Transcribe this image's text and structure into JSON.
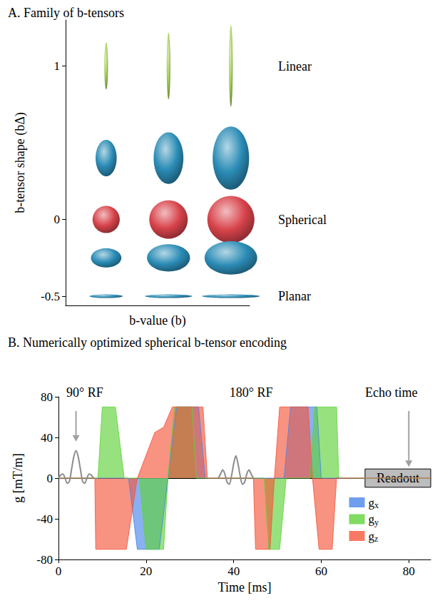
{
  "chart_data": [
    {
      "type": "ellipsoid",
      "title": "A. Family of b-tensors",
      "xlabel": "b-value (b)",
      "ylabel": "b-tensor shape (bΔ)",
      "x": [
        1,
        2,
        3
      ],
      "xlim": [
        0.35,
        3.3
      ],
      "ylim": [
        -0.56,
        1.3
      ],
      "yticks": [
        -0.5,
        0,
        1
      ],
      "tick_labels": "y",
      "series": [
        {
          "b_delta": 1,
          "color": "#a3cf4f"
        },
        {
          "b_delta": 0.4,
          "color": "#2b8cb6"
        },
        {
          "b_delta": 0,
          "color": "#d8434b"
        },
        {
          "b_delta": -0.25,
          "color": "#2b8cb6"
        },
        {
          "b_delta": -0.5,
          "color": "#2b8cb6"
        }
      ],
      "annotations": [
        {
          "text": "Linear",
          "y": 1
        },
        {
          "text": "Spherical",
          "y": 0
        },
        {
          "text": "Planar",
          "y": -0.5
        }
      ]
    },
    {
      "type": "area",
      "title": "B. Numerically optimized spherical b-tensor encoding",
      "xlabel": "Time [ms]",
      "ylabel": "g [mT/m]",
      "xlim": [
        0,
        85
      ],
      "xticks": [
        0,
        20,
        40,
        60,
        80
      ],
      "ylim": [
        -80,
        80
      ],
      "yticks": [
        -80,
        -40,
        0,
        40,
        80
      ],
      "legend": "lower right",
      "series": [
        {
          "name": "gx",
          "color": "#4a86e8",
          "x": [
            0,
            16,
            18,
            23,
            25,
            27,
            32,
            33.5,
            51.5,
            53,
            59,
            60,
            85
          ],
          "values": [
            0,
            0,
            -70,
            -70,
            0,
            70,
            70,
            0,
            0,
            70,
            70,
            0,
            0
          ]
        },
        {
          "name": "gy",
          "color": "#5fd33a",
          "x": [
            0,
            9,
            10,
            13,
            15,
            18.5,
            20,
            24,
            25,
            26.5,
            30.5,
            31.5,
            47,
            48,
            50.5,
            52,
            57.5,
            58.5,
            63.5,
            64,
            85
          ],
          "values": [
            0,
            0,
            70,
            70,
            0,
            0,
            -70,
            -70,
            0,
            70,
            70,
            0,
            0,
            -70,
            -70,
            0,
            0,
            70,
            70,
            0,
            0
          ]
        },
        {
          "name": "gz",
          "color": "#f4573e",
          "x": [
            0,
            8.3,
            8.5,
            15.5,
            18,
            22,
            24,
            26,
            33,
            34,
            44.5,
            45,
            48.3,
            49.3,
            50.5,
            57,
            58,
            59.5,
            62.5,
            63.5,
            85
          ],
          "values": [
            0,
            0,
            -70,
            -70,
            0,
            45,
            50,
            70,
            70,
            0,
            0,
            -70,
            -70,
            0,
            70,
            70,
            0,
            -70,
            -70,
            0,
            0
          ]
        }
      ],
      "rf": [
        {
          "color": "#8c8c8c",
          "x": [
            0,
            0.5,
            1,
            1.5,
            2,
            2.5,
            3,
            3.5,
            4,
            4.5,
            5,
            5.5,
            6,
            6.5,
            7,
            7.5,
            8
          ],
          "values": [
            0,
            3,
            4,
            0,
            -5,
            -3,
            9,
            21,
            27,
            21,
            9,
            -3,
            -5,
            0,
            4,
            3,
            0
          ]
        },
        {
          "color": "#8c8c8c",
          "x": [
            36.5,
            37,
            37.5,
            38,
            38.5,
            39,
            39.5,
            40,
            40.5,
            41,
            41.5,
            42,
            42.5,
            43,
            43.5,
            44,
            44.5
          ],
          "values": [
            0,
            4,
            8,
            4,
            -4,
            -6,
            2,
            14,
            22,
            14,
            2,
            -6,
            -4,
            4,
            8,
            4,
            0
          ]
        }
      ],
      "readout": {
        "text": "Readout",
        "color": "#bdbdbd",
        "x": [
          70,
          85
        ],
        "y": [
          -9,
          9
        ]
      },
      "annotations": [
        {
          "text": "90° RF",
          "x": 6,
          "y": 84,
          "arrow": [
            4,
            66,
            4,
            36
          ]
        },
        {
          "text": "180° RF",
          "x": 44,
          "y": 84
        },
        {
          "text": "Echo time",
          "x": 76,
          "y": 84,
          "arrow": [
            80,
            66,
            80,
            11
          ]
        }
      ]
    }
  ]
}
